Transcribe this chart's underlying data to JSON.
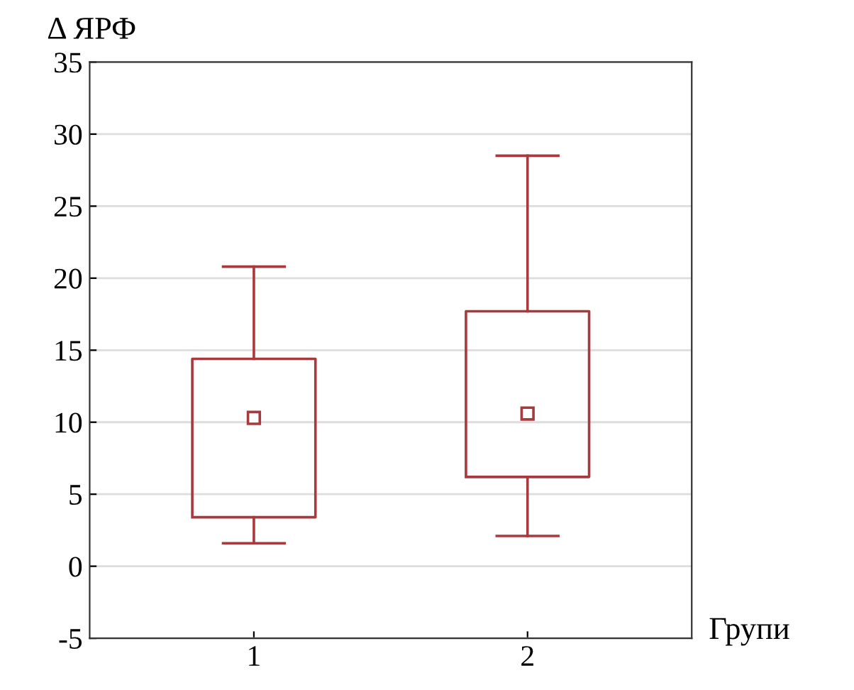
{
  "chart_data": {
    "type": "box",
    "ylabel": "Δ ЯРФ",
    "xlabel": "Групи",
    "categories": [
      "1",
      "2"
    ],
    "boxes": [
      {
        "low": 1.6,
        "q1": 3.4,
        "median": 10.3,
        "q3": 14.4,
        "high": 20.8
      },
      {
        "low": 2.1,
        "q1": 6.2,
        "median": 10.6,
        "q3": 17.7,
        "high": 28.5
      }
    ],
    "color": "#a83a3e",
    "ylim": [
      -5,
      35
    ],
    "yticks": [
      -5,
      0,
      5,
      10,
      15,
      20,
      25,
      30,
      35
    ],
    "grid": "y",
    "marker": "square"
  }
}
